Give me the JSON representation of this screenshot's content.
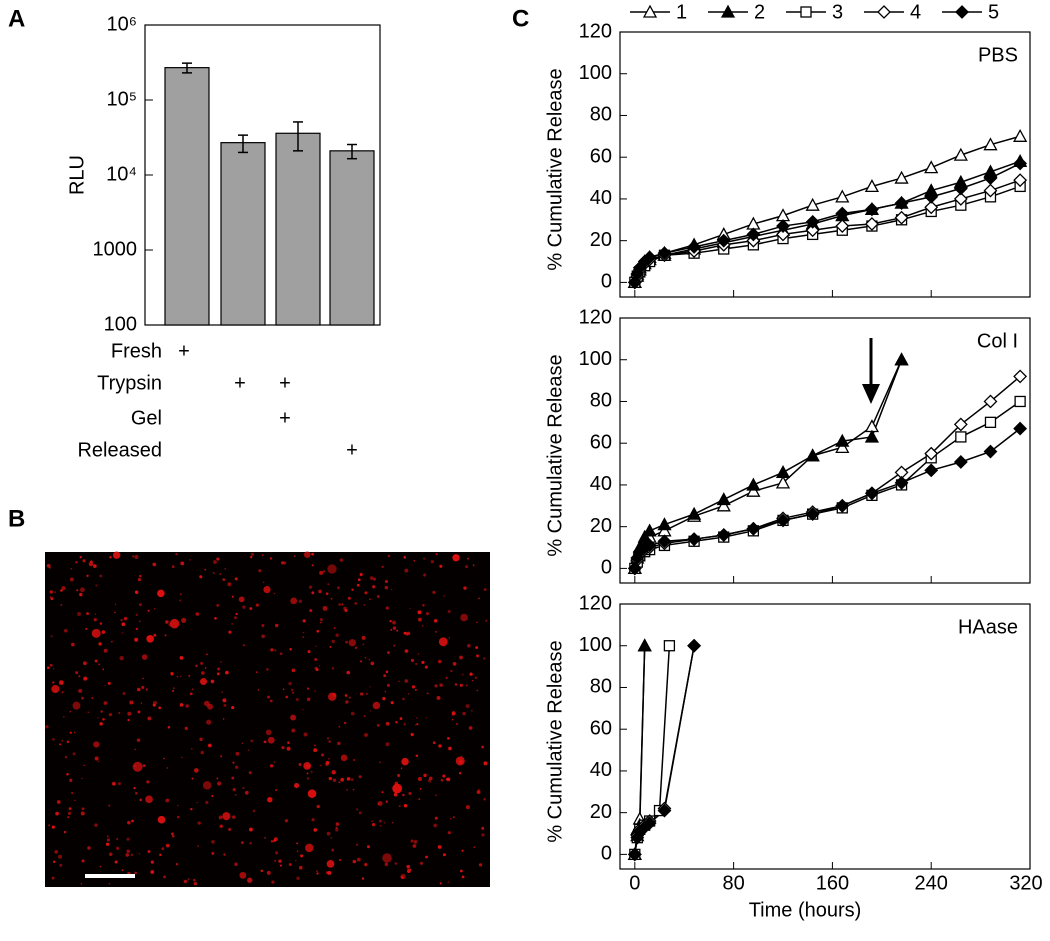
{
  "panel_labels": [
    "A",
    "B",
    "C"
  ],
  "chart_data": [
    {
      "type": "bar",
      "ylabel": "RLU",
      "log_scale": true,
      "color": "#a0a0a0",
      "categories": [
        null,
        null,
        null,
        null
      ],
      "values": [
        270000,
        27000,
        36000,
        21000
      ],
      "errors": [
        40000,
        7000,
        15000,
        4500
      ],
      "ylim": [
        100,
        1000000
      ],
      "yticks": [
        {
          "value": 1000000,
          "label": "10⁶"
        },
        {
          "value": 100000,
          "label": "10⁵"
        },
        {
          "value": 10000,
          "label": "10⁴"
        },
        1000,
        100
      ],
      "conditions": [
        {
          "name": "Fresh",
          "marks": [
            "+",
            null,
            null,
            null
          ]
        },
        {
          "name": "Trypsin",
          "marks": [
            null,
            "+",
            "+",
            null
          ]
        },
        {
          "name": "Gel",
          "marks": [
            null,
            null,
            "+",
            null
          ]
        },
        {
          "name": "Released",
          "marks": [
            null,
            null,
            null,
            "+"
          ]
        }
      ]
    },
    {
      "type": "line",
      "annotation": "PBS",
      "ylabel": "% Cumulative Release",
      "legend": "top",
      "xlim": [
        -12,
        320
      ],
      "xticks": [
        0,
        80,
        160,
        240,
        320
      ],
      "ylim": [
        -7,
        120
      ],
      "yticks": [
        0,
        20,
        40,
        60,
        80,
        100,
        120
      ],
      "series": [
        {
          "name": "1",
          "marker": "triangle",
          "fill": "open",
          "color": "#000000",
          "x": [
            0,
            2,
            4,
            8,
            12,
            24,
            48,
            72,
            96,
            120,
            144,
            168,
            192,
            216,
            240,
            264,
            288,
            312
          ],
          "values": [
            0,
            4,
            7,
            10,
            12,
            14,
            18,
            23,
            28,
            32,
            37,
            41,
            46,
            50,
            55,
            61,
            66,
            70
          ]
        },
        {
          "name": "2",
          "marker": "triangle",
          "fill": "filled",
          "color": "#000000",
          "x": [
            0,
            2,
            4,
            8,
            12,
            24,
            48,
            72,
            96,
            120,
            144,
            168,
            192,
            216,
            240,
            264,
            288,
            312
          ],
          "values": [
            0,
            3,
            6,
            9,
            11,
            13,
            16,
            19,
            22,
            25,
            28,
            32,
            35,
            38,
            44,
            48,
            53,
            58
          ]
        },
        {
          "name": "3",
          "marker": "square",
          "fill": "open",
          "color": "#000000",
          "x": [
            0,
            2,
            4,
            8,
            12,
            24,
            48,
            72,
            96,
            120,
            144,
            168,
            192,
            216,
            240,
            264,
            288,
            312
          ],
          "values": [
            0,
            3,
            5,
            8,
            10,
            13,
            14,
            16,
            18,
            21,
            23,
            25,
            27,
            30,
            34,
            37,
            41,
            46
          ]
        },
        {
          "name": "4",
          "marker": "diamond",
          "fill": "open",
          "color": "#000000",
          "x": [
            0,
            2,
            4,
            8,
            12,
            24,
            48,
            72,
            96,
            120,
            144,
            168,
            192,
            216,
            240,
            264,
            288,
            312
          ],
          "values": [
            0,
            3,
            6,
            9,
            11,
            13,
            15,
            18,
            20,
            23,
            25,
            27,
            28,
            31,
            36,
            40,
            44,
            49
          ]
        },
        {
          "name": "5",
          "marker": "diamond",
          "fill": "filled",
          "color": "#000000",
          "x": [
            0,
            2,
            4,
            8,
            12,
            24,
            48,
            72,
            96,
            120,
            144,
            168,
            192,
            216,
            240,
            264,
            288,
            312
          ],
          "values": [
            0,
            4,
            7,
            10,
            12,
            14,
            17,
            20,
            23,
            27,
            29,
            33,
            35,
            38,
            41,
            45,
            50,
            57
          ]
        }
      ]
    },
    {
      "type": "line",
      "annotation": "Col I",
      "ylabel": "% Cumulative Release",
      "xlim": [
        -12,
        320
      ],
      "xticks": [
        0,
        80,
        160,
        240,
        320
      ],
      "ylim": [
        -7,
        120
      ],
      "yticks": [
        0,
        20,
        40,
        60,
        80,
        100,
        120
      ],
      "series": [
        {
          "marker": "triangle",
          "fill": "open",
          "color": "#000000",
          "x": [
            0,
            2,
            4,
            8,
            12,
            24,
            48,
            72,
            96,
            120,
            144,
            168,
            192,
            216
          ],
          "values": [
            0,
            5,
            9,
            12,
            15,
            18,
            25,
            30,
            37,
            41,
            54,
            58,
            68,
            100
          ]
        },
        {
          "marker": "triangle",
          "fill": "filled",
          "color": "#000000",
          "x": [
            0,
            2,
            4,
            8,
            12,
            24,
            48,
            72,
            96,
            120,
            144,
            168,
            192,
            216
          ],
          "values": [
            0,
            6,
            10,
            15,
            18,
            21,
            26,
            33,
            40,
            46,
            54,
            61,
            63,
            100
          ]
        },
        {
          "marker": "square",
          "fill": "open",
          "color": "#000000",
          "x": [
            0,
            2,
            4,
            8,
            12,
            24,
            48,
            72,
            96,
            120,
            144,
            168,
            192,
            216,
            240,
            264,
            288,
            312
          ],
          "values": [
            0,
            3,
            6,
            8,
            9,
            11,
            13,
            15,
            18,
            23,
            26,
            29,
            35,
            40,
            53,
            63,
            70,
            80
          ]
        },
        {
          "marker": "diamond",
          "fill": "open",
          "color": "#000000",
          "x": [
            0,
            2,
            4,
            8,
            12,
            24,
            48,
            72,
            96,
            120,
            144,
            168,
            192,
            216,
            240,
            264,
            288,
            312
          ],
          "values": [
            0,
            4,
            7,
            9,
            10,
            12,
            14,
            16,
            19,
            24,
            27,
            30,
            36,
            46,
            55,
            69,
            80,
            92
          ]
        },
        {
          "marker": "diamond",
          "fill": "filled",
          "color": "#000000",
          "x": [
            0,
            2,
            4,
            8,
            12,
            24,
            48,
            72,
            96,
            120,
            144,
            168,
            192,
            216,
            240,
            264,
            288,
            312
          ],
          "values": [
            0,
            5,
            8,
            10,
            11,
            13,
            14,
            16,
            19,
            23,
            26,
            30,
            36,
            41,
            47,
            51,
            56,
            67
          ]
        }
      ]
    },
    {
      "type": "line",
      "annotation": "HAase",
      "ylabel": "% Cumulative Release",
      "xlabel": "Time (hours)",
      "xlim": [
        -12,
        320
      ],
      "xticks": [
        0,
        80,
        160,
        240,
        320
      ],
      "ylim": [
        -7,
        120
      ],
      "yticks": [
        0,
        20,
        40,
        60,
        80,
        100,
        120
      ],
      "series": [
        {
          "marker": "triangle",
          "fill": "open",
          "color": "#000000",
          "x": [
            0,
            2,
            4,
            8
          ],
          "values": [
            0,
            12,
            17,
            100
          ]
        },
        {
          "marker": "triangle",
          "fill": "filled",
          "color": "#000000",
          "x": [
            0,
            2,
            4,
            8
          ],
          "values": [
            0,
            9,
            14,
            100
          ]
        },
        {
          "marker": "square",
          "fill": "open",
          "color": "#000000",
          "x": [
            0,
            2,
            4,
            8,
            12,
            20,
            28
          ],
          "values": [
            0,
            8,
            12,
            14,
            16,
            21,
            100
          ]
        },
        {
          "marker": "diamond",
          "fill": "open",
          "color": "#000000",
          "x": [
            0,
            2,
            4,
            8,
            12,
            24,
            48
          ],
          "values": [
            0,
            9,
            12,
            14,
            16,
            22,
            100
          ]
        },
        {
          "marker": "diamond",
          "fill": "filled",
          "color": "#000000",
          "x": [
            0,
            2,
            4,
            8,
            12,
            24,
            48
          ],
          "values": [
            0,
            8,
            11,
            13,
            15,
            21,
            100
          ]
        }
      ]
    }
  ]
}
